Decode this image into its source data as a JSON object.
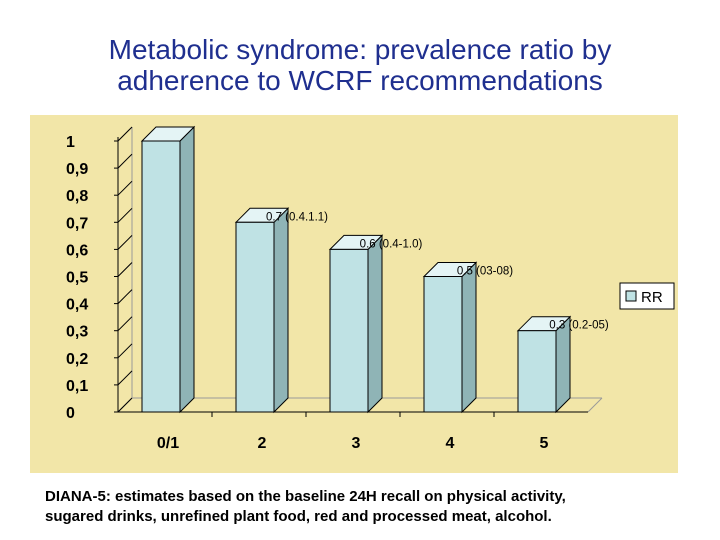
{
  "slide": {
    "title_line1": "Metabolic syndrome: prevalence ratio by",
    "title_line2": "adherence to WCRF recommendations",
    "footnote_line1": "DIANA-5: estimates based on the baseline 24H recall on physical activity,",
    "footnote_line2": "sugared drinks, unrefined plant  food, red and processed meat, alcohol."
  },
  "colors": {
    "panel_bg": "#f2e6a8",
    "bar_front": "#bfe2e4",
    "bar_side": "#8fb4b6",
    "bar_top": "#e4f4f5",
    "title": "#1f2f8f"
  },
  "chart_data": {
    "type": "bar",
    "categories": [
      "0/1",
      "2",
      "3",
      "4",
      "5"
    ],
    "series": [
      {
        "name": "RR",
        "values": [
          1.0,
          0.7,
          0.6,
          0.5,
          0.3
        ]
      }
    ],
    "data_labels": [
      "",
      "0.7 (0.4.1.1)",
      "0.6 (0.4-1.0)",
      "0.5 (03-08)",
      "0.3 (0.2-05)"
    ],
    "y_tick_labels": [
      "0",
      "0,1",
      "0,2",
      "0,3",
      "0,4",
      "0,5",
      "0,6",
      "0,7",
      "0,8",
      "0,9",
      "1"
    ],
    "ylim": [
      0,
      1
    ],
    "grid": false,
    "legend": "right",
    "title": "",
    "xlabel": "",
    "ylabel": ""
  }
}
